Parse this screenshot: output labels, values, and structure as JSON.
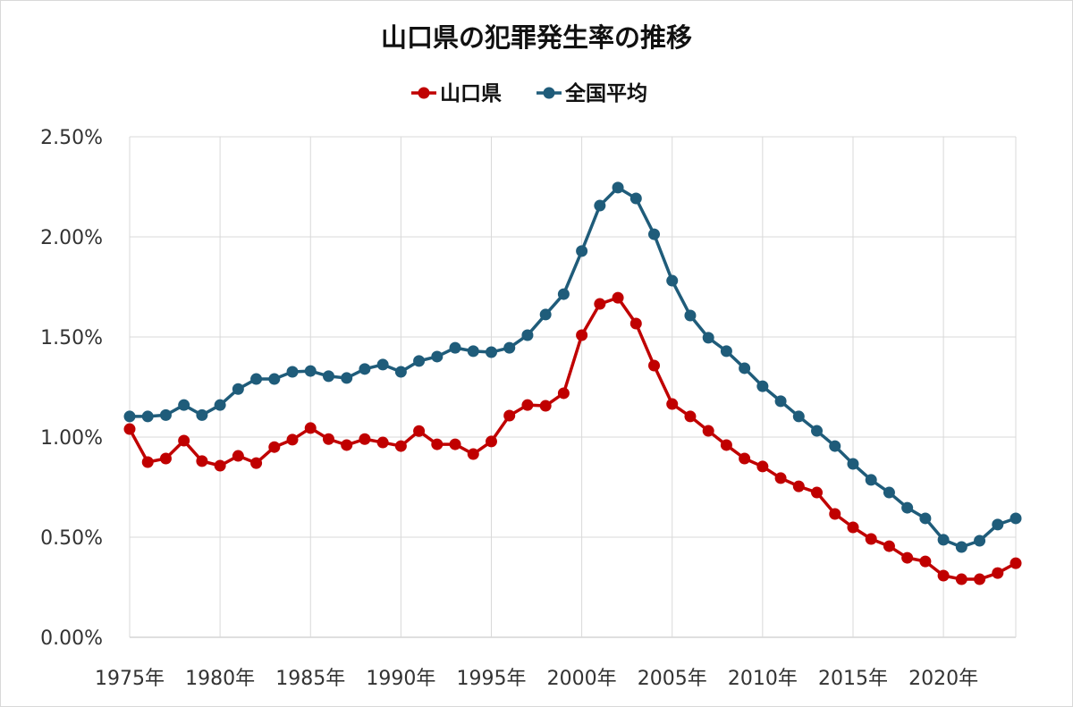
{
  "chart_data": {
    "type": "line",
    "title": "山口県の犯罪発生率の推移",
    "xlabel": "",
    "ylabel": "",
    "ylim": [
      0,
      0.025
    ],
    "grid": true,
    "legend_position": "top-center",
    "y_ticks": [
      "0.00%",
      "0.50%",
      "1.00%",
      "1.50%",
      "2.00%",
      "2.50%"
    ],
    "y_tick_values": [
      0,
      0.005,
      0.01,
      0.015,
      0.02,
      0.025
    ],
    "x_tick_labels": [
      "1975年",
      "1980年",
      "1985年",
      "1990年",
      "1995年",
      "2000年",
      "2005年",
      "2010年",
      "2015年",
      "2020年"
    ],
    "x_tick_years": [
      1975,
      1980,
      1985,
      1990,
      1995,
      2000,
      2005,
      2010,
      2015,
      2020
    ],
    "x": [
      1975,
      1976,
      1977,
      1978,
      1979,
      1980,
      1981,
      1982,
      1983,
      1984,
      1985,
      1986,
      1987,
      1988,
      1989,
      1990,
      1991,
      1992,
      1993,
      1994,
      1995,
      1996,
      1997,
      1998,
      1999,
      2000,
      2001,
      2002,
      2003,
      2004,
      2005,
      2006,
      2007,
      2008,
      2009,
      2010,
      2011,
      2012,
      2013,
      2014,
      2015,
      2016,
      2017,
      2018,
      2019,
      2020,
      2021,
      2022,
      2023,
      2024
    ],
    "series": [
      {
        "name": "山口県",
        "color": "#C00000",
        "values": [
          1.04,
          0.875,
          0.893,
          0.982,
          0.88,
          0.857,
          0.906,
          0.87,
          0.95,
          0.987,
          1.045,
          0.99,
          0.96,
          0.99,
          0.973,
          0.955,
          1.03,
          0.964,
          0.964,
          0.915,
          0.978,
          1.107,
          1.16,
          1.156,
          1.219,
          1.509,
          1.665,
          1.696,
          1.567,
          1.357,
          1.165,
          1.103,
          1.031,
          0.96,
          0.893,
          0.853,
          0.795,
          0.754,
          0.723,
          0.616,
          0.549,
          0.491,
          0.455,
          0.397,
          0.379,
          0.308,
          0.29,
          0.29,
          0.321,
          0.37
        ]
      },
      {
        "name": "全国平均",
        "color": "#1F5C7A",
        "values": [
          1.103,
          1.103,
          1.11,
          1.16,
          1.11,
          1.16,
          1.24,
          1.29,
          1.29,
          1.326,
          1.33,
          1.304,
          1.295,
          1.34,
          1.362,
          1.326,
          1.38,
          1.402,
          1.446,
          1.429,
          1.424,
          1.446,
          1.509,
          1.612,
          1.714,
          1.929,
          2.156,
          2.246,
          2.192,
          2.013,
          1.781,
          1.607,
          1.496,
          1.429,
          1.344,
          1.254,
          1.179,
          1.103,
          1.031,
          0.955,
          0.866,
          0.786,
          0.723,
          0.647,
          0.594,
          0.487,
          0.451,
          0.482,
          0.563,
          0.594
        ]
      }
    ],
    "value_unit": "percent"
  }
}
